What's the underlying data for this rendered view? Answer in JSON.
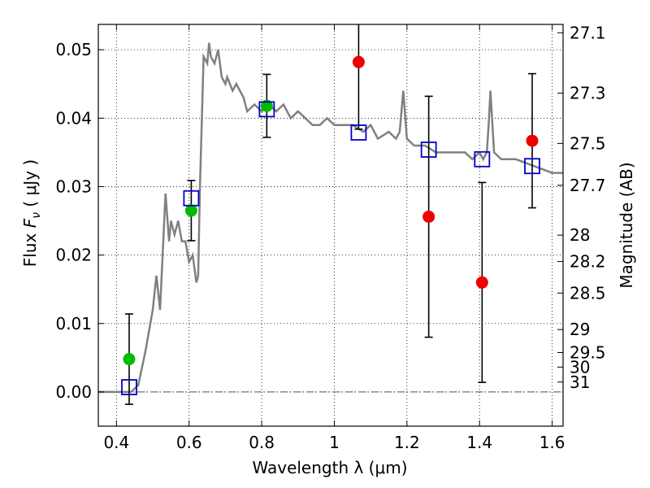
{
  "chart_data": {
    "type": "scatter",
    "xlabel": "Wavelength  λ (μm)",
    "ylabel": "Flux  F_ν  ( μJy )",
    "ylabel_parts": {
      "lead": "Flux ",
      "symbol": "F",
      "subscript": "ν",
      "units": "  ( μJy )"
    },
    "y2label": "Magnitude (AB)",
    "xlim": [
      0.35,
      1.63
    ],
    "ylim": [
      -0.005,
      0.0537
    ],
    "grid": true,
    "x_ticks": [
      0.4,
      0.6,
      0.8,
      1.0,
      1.2,
      1.4,
      1.6
    ],
    "x_tick_labels": [
      "0.4",
      "0.6",
      "0.8",
      "1",
      "1.2",
      "1.4",
      "1.6"
    ],
    "y_ticks": [
      0.0,
      0.01,
      0.02,
      0.03,
      0.04,
      0.05
    ],
    "y_tick_labels": [
      "0.00",
      "0.01",
      "0.02",
      "0.03",
      "0.04",
      "0.05"
    ],
    "y2_ticks": [
      {
        "mag": 27.1,
        "label": "27.1"
      },
      {
        "mag": 27.3,
        "label": "27.3"
      },
      {
        "mag": 27.5,
        "label": "27.5"
      },
      {
        "mag": 27.7,
        "label": "27.7"
      },
      {
        "mag": 28,
        "label": "28"
      },
      {
        "mag": 28.2,
        "label": "28.2"
      },
      {
        "mag": 28.5,
        "label": "28.5"
      },
      {
        "mag": 29,
        "label": "29"
      },
      {
        "mag": 29.5,
        "label": "29.5"
      },
      {
        "mag": 30,
        "label": "30"
      },
      {
        "mag": 31,
        "label": "31"
      }
    ],
    "colors": {
      "model": "#808080",
      "green": "#00bb00",
      "red": "#ee0000",
      "blue": "#0000cc",
      "errorbar": "#000000",
      "zero_line": "#555555"
    },
    "model_spectrum": {
      "x": [
        0.35,
        0.44,
        0.46,
        0.48,
        0.5,
        0.51,
        0.52,
        0.535,
        0.545,
        0.55,
        0.56,
        0.57,
        0.58,
        0.59,
        0.6,
        0.61,
        0.62,
        0.625,
        0.63,
        0.64,
        0.65,
        0.655,
        0.66,
        0.67,
        0.68,
        0.69,
        0.7,
        0.705,
        0.72,
        0.73,
        0.74,
        0.75,
        0.76,
        0.78,
        0.8,
        0.82,
        0.84,
        0.86,
        0.88,
        0.9,
        0.92,
        0.94,
        0.96,
        0.98,
        1.0,
        1.02,
        1.05,
        1.08,
        1.1,
        1.12,
        1.15,
        1.17,
        1.18,
        1.19,
        1.2,
        1.22,
        1.25,
        1.28,
        1.3,
        1.33,
        1.36,
        1.38,
        1.4,
        1.41,
        1.42,
        1.425,
        1.43,
        1.44,
        1.46,
        1.5,
        1.55,
        1.6,
        1.63
      ],
      "y": [
        0.0,
        0.0,
        0.001,
        0.006,
        0.012,
        0.017,
        0.012,
        0.029,
        0.022,
        0.025,
        0.023,
        0.025,
        0.022,
        0.022,
        0.019,
        0.02,
        0.016,
        0.017,
        0.03,
        0.049,
        0.048,
        0.051,
        0.049,
        0.048,
        0.05,
        0.046,
        0.045,
        0.046,
        0.044,
        0.045,
        0.044,
        0.043,
        0.041,
        0.042,
        0.041,
        0.042,
        0.041,
        0.042,
        0.04,
        0.041,
        0.04,
        0.039,
        0.039,
        0.04,
        0.039,
        0.039,
        0.039,
        0.038,
        0.039,
        0.037,
        0.038,
        0.037,
        0.038,
        0.044,
        0.037,
        0.036,
        0.036,
        0.035,
        0.035,
        0.035,
        0.035,
        0.034,
        0.035,
        0.034,
        0.035,
        0.039,
        0.044,
        0.035,
        0.034,
        0.034,
        0.033,
        0.032,
        0.032
      ]
    },
    "series": [
      {
        "marker": "circle",
        "color": "green",
        "points": [
          {
            "x": 0.435,
            "y": 0.0048,
            "yerr": 0.0066
          },
          {
            "x": 0.606,
            "y": 0.0265,
            "yerr": 0.0044
          },
          {
            "x": 0.814,
            "y": 0.0418,
            "yerr": 0.0046
          }
        ]
      },
      {
        "marker": "circle",
        "color": "red",
        "points": [
          {
            "x": 1.067,
            "y": 0.0482,
            "yerr": 0.0098
          },
          {
            "x": 1.26,
            "y": 0.0256,
            "yerr": 0.0176
          },
          {
            "x": 1.407,
            "y": 0.016,
            "yerr": 0.0146
          },
          {
            "x": 1.545,
            "y": 0.0367,
            "yerr": 0.0098
          }
        ]
      },
      {
        "marker": "open-square",
        "color": "blue",
        "points": [
          {
            "x": 0.435,
            "y": 0.0007
          },
          {
            "x": 0.606,
            "y": 0.0283
          },
          {
            "x": 0.814,
            "y": 0.0413
          },
          {
            "x": 1.067,
            "y": 0.0379
          },
          {
            "x": 1.26,
            "y": 0.0354
          },
          {
            "x": 1.407,
            "y": 0.034
          },
          {
            "x": 1.545,
            "y": 0.033
          }
        ]
      }
    ]
  }
}
